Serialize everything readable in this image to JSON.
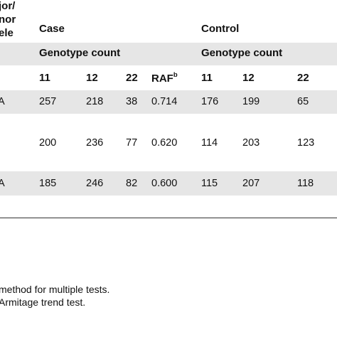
{
  "header": {
    "allele_col": [
      "jor/",
      "nor",
      "ele"
    ],
    "case_label": "Case",
    "control_label": "Control",
    "case_genotype_label": "Genotype count",
    "control_genotype_label": "Genotype count",
    "case_cols": [
      "11",
      "12",
      "22"
    ],
    "raf_label": "RAF",
    "raf_sup": "b",
    "control_cols": [
      "11",
      "12",
      "22"
    ]
  },
  "rows": [
    {
      "allele": "A",
      "c11": "257",
      "c12": "218",
      "c22": "38",
      "raf": "0.714",
      "k11": "176",
      "k12": "199",
      "k22": "65"
    },
    {
      "allele": "",
      "c11": "200",
      "c12": "236",
      "c22": "77",
      "raf": "0.620",
      "k11": "114",
      "k12": "203",
      "k22": "123"
    },
    {
      "allele": "A",
      "c11": "185",
      "c12": "246",
      "c22": "82",
      "raf": "0.600",
      "k11": "115",
      "k12": "207",
      "k22": "118"
    }
  ],
  "footnotes": [
    "method for multiple tests.",
    "Armitage trend test."
  ]
}
